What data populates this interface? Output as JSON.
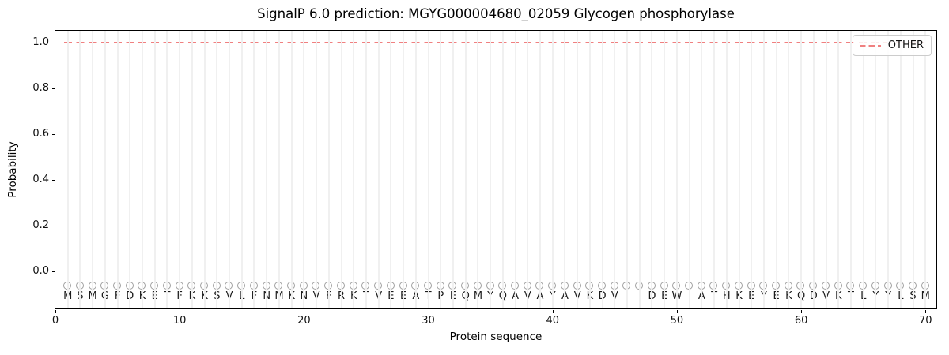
{
  "chart_data": {
    "type": "line",
    "title": "SignalP 6.0 prediction: MGYG000004680_02059 Glycogen phosphorylase",
    "xlabel": "Protein sequence",
    "ylabel": "Probability",
    "xlim": [
      0,
      71
    ],
    "ylim": [
      -0.169,
      1.052
    ],
    "x_ticks": [
      0,
      10,
      20,
      30,
      40,
      50,
      60,
      70
    ],
    "y_ticks": [
      {
        "value": 0.0,
        "label": "0.0"
      },
      {
        "value": 0.2,
        "label": "0.2"
      },
      {
        "value": 0.4,
        "label": "0.4"
      },
      {
        "value": 0.6,
        "label": "0.6"
      },
      {
        "value": 0.8,
        "label": "0.8"
      },
      {
        "value": 1.0,
        "label": "1.0"
      }
    ],
    "grid": "vertical gridline at each residue position, no horizontal gridlines",
    "legend": {
      "position": "upper right",
      "entries": [
        {
          "label": "OTHER",
          "color": "#f08080",
          "linestyle": "dashed"
        }
      ]
    },
    "series": [
      {
        "name": "OTHER",
        "linestyle": "dashed",
        "color": "#f08080",
        "x_start": 1,
        "x_end": 70,
        "constant_y": 1.0,
        "note": "flat dashed line at probability 1.0 across all residues"
      }
    ],
    "sequence": "MSMGFDKETFKKSVLFNMKNVFRKTVEEATPEQMYQAVAYAVKDVIIDEWIATHKEYEKQDVKTLYYLSM",
    "sequence_length": 70,
    "marker": {
      "shape": "open-circle",
      "y": -0.065,
      "edge_color": "#a0a0a0"
    },
    "letters_y": -0.112
  },
  "colors": {
    "background": "#ffffff",
    "spine": "#000000",
    "grid": "#f0f0f0",
    "dash_line": "#f08080",
    "tick_label": "#111111",
    "sequence_letter": "#1c1c1c",
    "legend_border": "#cccccc"
  }
}
